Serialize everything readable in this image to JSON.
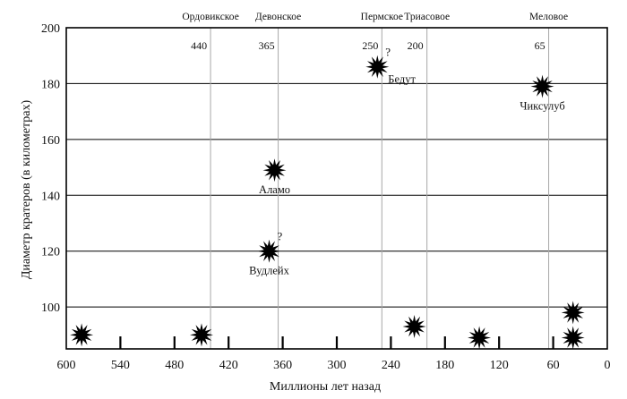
{
  "chart_data": {
    "type": "scatter",
    "xlabel": "Миллионы лет назад",
    "ylabel": "Диаметр кратеров (в километрах)",
    "xlim": [
      600,
      0
    ],
    "ylim": [
      85,
      200
    ],
    "x_ticks": [
      600,
      540,
      480,
      420,
      360,
      300,
      240,
      180,
      120,
      60,
      0
    ],
    "y_ticks": [
      100,
      120,
      140,
      160,
      180,
      200
    ],
    "horizontal_grid": true,
    "extinctions": [
      {
        "name": "Ордовикское",
        "age": "440",
        "x": 440
      },
      {
        "name": "Девонское",
        "age": "365",
        "x": 365
      },
      {
        "name": "Пермское",
        "age": "250",
        "x": 250
      },
      {
        "name": "Триасовое",
        "age": "200",
        "x": 200
      },
      {
        "name": "Меловое",
        "age": "65",
        "x": 65
      }
    ],
    "craters": [
      {
        "x": 583,
        "y": 90,
        "label": "",
        "uncertain": false
      },
      {
        "x": 450,
        "y": 90,
        "label": "",
        "uncertain": false
      },
      {
        "x": 375,
        "y": 120,
        "label": "Вудлейх",
        "uncertain": true
      },
      {
        "x": 369,
        "y": 149,
        "label": "Аламо",
        "uncertain": false
      },
      {
        "x": 255,
        "y": 186,
        "label": "Бедут",
        "uncertain": true
      },
      {
        "x": 214,
        "y": 93,
        "label": "",
        "uncertain": false
      },
      {
        "x": 142,
        "y": 89,
        "label": "",
        "uncertain": false
      },
      {
        "x": 72,
        "y": 179,
        "label": "Чиксулуб",
        "uncertain": false
      },
      {
        "x": 38,
        "y": 98,
        "label": "",
        "uncertain": false
      },
      {
        "x": 38,
        "y": 89,
        "label": "",
        "uncertain": false
      }
    ],
    "uncertain_mark": "?"
  }
}
